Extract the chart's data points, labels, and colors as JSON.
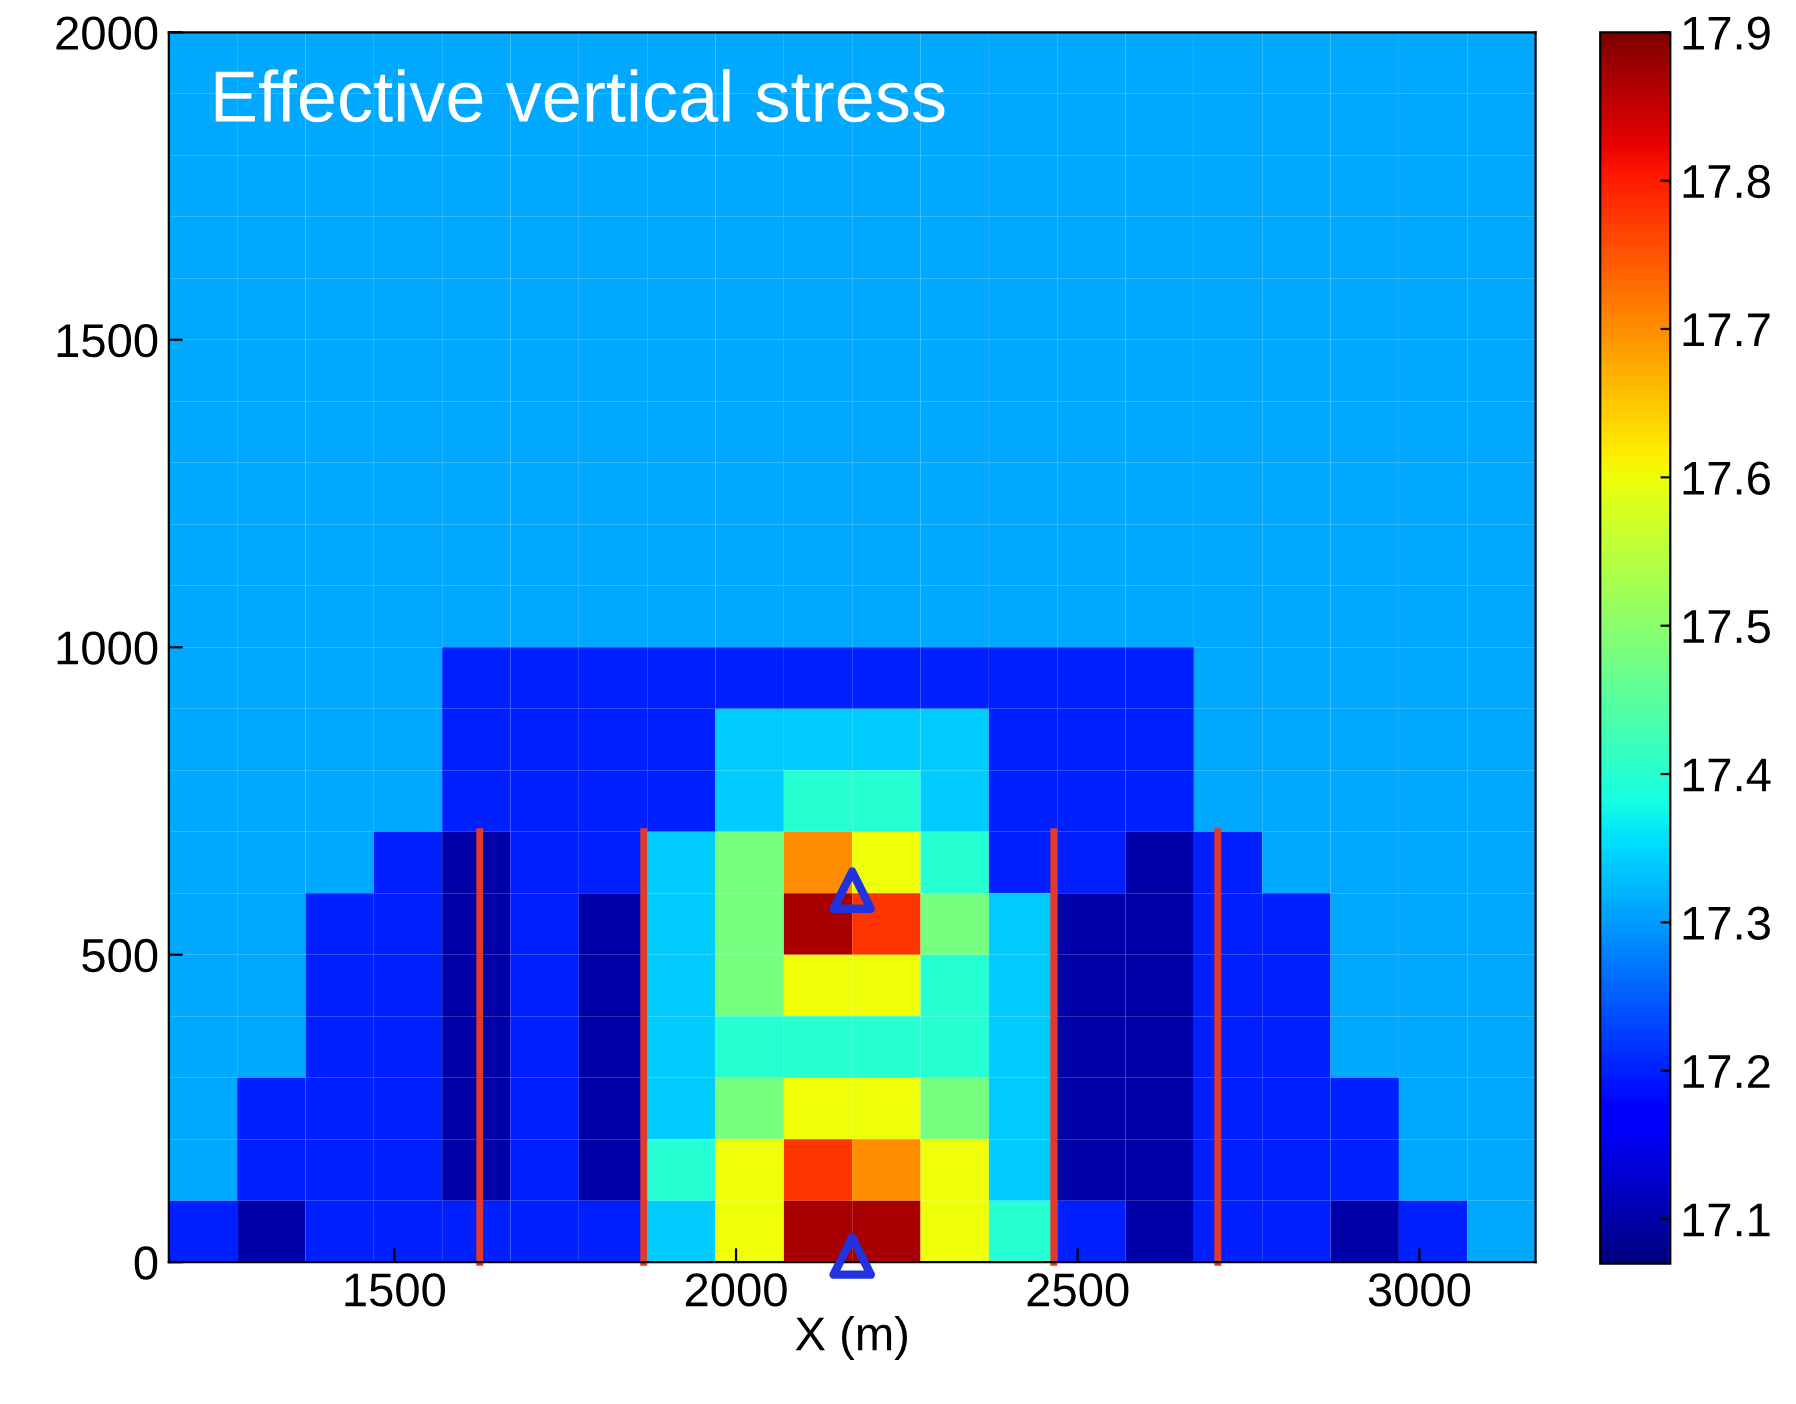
{
  "chart_data": {
    "type": "heatmap",
    "title": "Effective vertical stress",
    "xlabel": "X (m)",
    "x": [
      1220,
      1320,
      1420,
      1520,
      1620,
      1720,
      1820,
      1920,
      2020,
      2120,
      2220,
      2320,
      2420,
      2520,
      2620,
      2720,
      2820,
      2920,
      3020,
      3120
    ],
    "y": [
      1950,
      1850,
      1750,
      1650,
      1550,
      1450,
      1350,
      1250,
      1150,
      1050,
      950,
      850,
      750,
      650,
      550,
      450,
      350,
      250,
      150,
      50
    ],
    "cells": [
      [
        17.31,
        17.31,
        17.31,
        17.31,
        17.31,
        17.31,
        17.31,
        17.31,
        17.31,
        17.31,
        17.31,
        17.31,
        17.31,
        17.31,
        17.31,
        17.31,
        17.31,
        17.31,
        17.31,
        17.31
      ],
      [
        17.31,
        17.31,
        17.31,
        17.31,
        17.31,
        17.31,
        17.31,
        17.31,
        17.31,
        17.31,
        17.31,
        17.31,
        17.31,
        17.31,
        17.31,
        17.31,
        17.31,
        17.31,
        17.31,
        17.31
      ],
      [
        17.31,
        17.31,
        17.31,
        17.31,
        17.31,
        17.31,
        17.31,
        17.31,
        17.31,
        17.31,
        17.31,
        17.31,
        17.31,
        17.31,
        17.31,
        17.31,
        17.31,
        17.31,
        17.31,
        17.31
      ],
      [
        17.31,
        17.31,
        17.31,
        17.31,
        17.31,
        17.31,
        17.31,
        17.31,
        17.31,
        17.31,
        17.31,
        17.31,
        17.31,
        17.31,
        17.31,
        17.31,
        17.31,
        17.31,
        17.31,
        17.31
      ],
      [
        17.31,
        17.31,
        17.31,
        17.31,
        17.31,
        17.31,
        17.31,
        17.31,
        17.31,
        17.31,
        17.31,
        17.31,
        17.31,
        17.31,
        17.31,
        17.31,
        17.31,
        17.31,
        17.31,
        17.31
      ],
      [
        17.31,
        17.31,
        17.31,
        17.31,
        17.31,
        17.31,
        17.31,
        17.31,
        17.31,
        17.31,
        17.31,
        17.31,
        17.31,
        17.31,
        17.31,
        17.31,
        17.31,
        17.31,
        17.31,
        17.31
      ],
      [
        17.31,
        17.31,
        17.31,
        17.31,
        17.31,
        17.31,
        17.31,
        17.31,
        17.31,
        17.31,
        17.31,
        17.31,
        17.31,
        17.31,
        17.31,
        17.31,
        17.31,
        17.31,
        17.31,
        17.31
      ],
      [
        17.31,
        17.31,
        17.31,
        17.31,
        17.31,
        17.31,
        17.31,
        17.31,
        17.31,
        17.31,
        17.31,
        17.31,
        17.31,
        17.31,
        17.31,
        17.31,
        17.31,
        17.31,
        17.31,
        17.31
      ],
      [
        17.31,
        17.31,
        17.31,
        17.31,
        17.31,
        17.31,
        17.31,
        17.31,
        17.31,
        17.31,
        17.31,
        17.31,
        17.31,
        17.31,
        17.31,
        17.31,
        17.31,
        17.31,
        17.31,
        17.31
      ],
      [
        17.31,
        17.31,
        17.31,
        17.31,
        17.31,
        17.31,
        17.31,
        17.31,
        17.31,
        17.31,
        17.31,
        17.31,
        17.31,
        17.31,
        17.31,
        17.31,
        17.31,
        17.31,
        17.31,
        17.31
      ],
      [
        17.31,
        17.31,
        17.31,
        17.31,
        17.2,
        17.2,
        17.2,
        17.2,
        17.2,
        17.2,
        17.2,
        17.2,
        17.2,
        17.2,
        17.2,
        17.31,
        17.31,
        17.31,
        17.31,
        17.31
      ],
      [
        17.31,
        17.31,
        17.31,
        17.31,
        17.2,
        17.2,
        17.2,
        17.2,
        17.34,
        17.34,
        17.34,
        17.34,
        17.2,
        17.2,
        17.2,
        17.31,
        17.31,
        17.31,
        17.31,
        17.31
      ],
      [
        17.31,
        17.31,
        17.31,
        17.31,
        17.2,
        17.2,
        17.2,
        17.2,
        17.34,
        17.4,
        17.4,
        17.34,
        17.2,
        17.2,
        17.2,
        17.31,
        17.31,
        17.31,
        17.31,
        17.31
      ],
      [
        17.31,
        17.31,
        17.31,
        17.2,
        17.1,
        17.2,
        17.2,
        17.34,
        17.48,
        17.7,
        17.6,
        17.4,
        17.2,
        17.2,
        17.1,
        17.2,
        17.31,
        17.31,
        17.31,
        17.31
      ],
      [
        17.31,
        17.31,
        17.2,
        17.2,
        17.1,
        17.2,
        17.1,
        17.34,
        17.48,
        17.87,
        17.78,
        17.48,
        17.34,
        17.1,
        17.1,
        17.2,
        17.2,
        17.31,
        17.31,
        17.31
      ],
      [
        17.31,
        17.31,
        17.2,
        17.2,
        17.1,
        17.2,
        17.1,
        17.34,
        17.48,
        17.6,
        17.6,
        17.4,
        17.34,
        17.1,
        17.1,
        17.2,
        17.2,
        17.31,
        17.31,
        17.31
      ],
      [
        17.31,
        17.31,
        17.2,
        17.2,
        17.1,
        17.2,
        17.1,
        17.34,
        17.4,
        17.4,
        17.4,
        17.4,
        17.34,
        17.1,
        17.1,
        17.2,
        17.2,
        17.31,
        17.31,
        17.31
      ],
      [
        17.31,
        17.2,
        17.2,
        17.2,
        17.1,
        17.2,
        17.1,
        17.34,
        17.48,
        17.6,
        17.6,
        17.48,
        17.34,
        17.1,
        17.1,
        17.2,
        17.2,
        17.2,
        17.31,
        17.31
      ],
      [
        17.31,
        17.2,
        17.2,
        17.2,
        17.1,
        17.2,
        17.1,
        17.4,
        17.6,
        17.78,
        17.7,
        17.6,
        17.34,
        17.1,
        17.1,
        17.2,
        17.2,
        17.2,
        17.31,
        17.31
      ],
      [
        17.2,
        17.1,
        17.2,
        17.2,
        17.2,
        17.2,
        17.2,
        17.34,
        17.6,
        17.87,
        17.87,
        17.6,
        17.4,
        17.2,
        17.1,
        17.2,
        17.2,
        17.1,
        17.2,
        17.31
      ]
    ],
    "clim": [
      17.07,
      17.9
    ],
    "cticks": [
      17.1,
      17.2,
      17.3,
      17.4,
      17.5,
      17.6,
      17.7,
      17.8,
      17.9
    ],
    "xlim": [
      1170,
      3170
    ],
    "xticks": [
      1500,
      2000,
      2500,
      3000
    ],
    "ylim": [
      0,
      2000
    ],
    "yticks": [
      0,
      500,
      1000,
      1500,
      2000
    ],
    "series": [
      {
        "type": "line",
        "color": "#e23a2a",
        "x": [
          1625,
          1625
        ],
        "values": [
          0,
          700
        ]
      },
      {
        "type": "line",
        "color": "#e23a2a",
        "x": [
          1865,
          1865
        ],
        "values": [
          0,
          700
        ]
      },
      {
        "type": "line",
        "color": "#e23a2a",
        "x": [
          2465,
          2465
        ],
        "values": [
          0,
          700
        ]
      },
      {
        "type": "line",
        "color": "#e23a2a",
        "x": [
          2705,
          2705
        ],
        "values": [
          0,
          700
        ]
      },
      {
        "type": "scatter",
        "color": "#2233dd",
        "marker": "triangle",
        "x": [
          2170,
          2170
        ],
        "values": [
          605,
          10
        ]
      }
    ],
    "grid": false,
    "legend": false
  }
}
